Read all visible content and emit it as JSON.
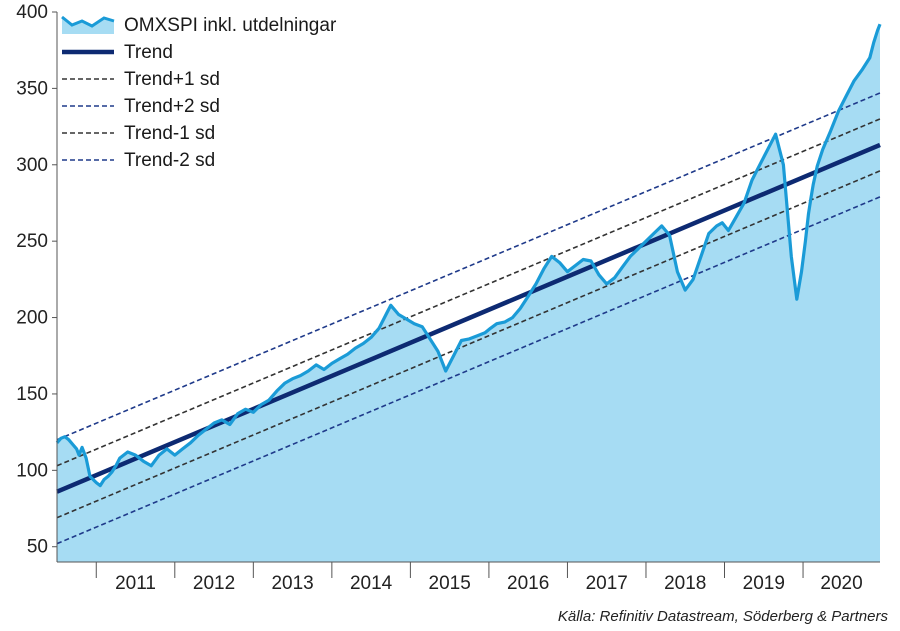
{
  "chart_data": {
    "type": "area",
    "title": "",
    "xlabel": "",
    "ylabel": "",
    "ylim": [
      40,
      400
    ],
    "yticks": [
      50,
      100,
      150,
      200,
      250,
      300,
      350,
      400
    ],
    "xlim": [
      2010.5,
      2020.98
    ],
    "year_labels": [
      "2011",
      "2012",
      "2013",
      "2014",
      "2015",
      "2016",
      "2017",
      "2018",
      "2019",
      "2020"
    ],
    "grid": false,
    "legend_position": "top-left",
    "series": [
      {
        "name": "OMXSPI inkl. utdelningar",
        "kind": "area",
        "color": "#1a9bd7",
        "fill": "#a6dcf3",
        "x": [
          2010.5,
          2010.55,
          2010.6,
          2010.65,
          2010.7,
          2010.75,
          2010.78,
          2010.82,
          2010.87,
          2010.92,
          2011.0,
          2011.05,
          2011.1,
          2011.15,
          2011.2,
          2011.25,
          2011.3,
          2011.4,
          2011.5,
          2011.6,
          2011.7,
          2011.8,
          2011.9,
          2012.0,
          2012.1,
          2012.2,
          2012.3,
          2012.4,
          2012.5,
          2012.6,
          2012.7,
          2012.8,
          2012.9,
          2013.0,
          2013.1,
          2013.2,
          2013.3,
          2013.4,
          2013.5,
          2013.6,
          2013.7,
          2013.8,
          2013.9,
          2014.0,
          2014.1,
          2014.2,
          2014.3,
          2014.4,
          2014.5,
          2014.6,
          2014.7,
          2014.75,
          2014.85,
          2014.95,
          2015.05,
          2015.15,
          2015.25,
          2015.35,
          2015.45,
          2015.55,
          2015.65,
          2015.75,
          2015.85,
          2015.95,
          2016.02,
          2016.1,
          2016.2,
          2016.3,
          2016.4,
          2016.5,
          2016.6,
          2016.7,
          2016.8,
          2016.9,
          2017.0,
          2017.1,
          2017.2,
          2017.3,
          2017.4,
          2017.5,
          2017.6,
          2017.7,
          2017.8,
          2017.9,
          2018.0,
          2018.1,
          2018.2,
          2018.3,
          2018.4,
          2018.5,
          2018.6,
          2018.7,
          2018.8,
          2018.9,
          2018.97,
          2019.05,
          2019.15,
          2019.25,
          2019.35,
          2019.45,
          2019.55,
          2019.65,
          2019.75,
          2019.85,
          2019.92,
          2019.98,
          2020.03,
          2020.07,
          2020.1,
          2020.13,
          2020.18,
          2020.25,
          2020.35,
          2020.45,
          2020.55,
          2020.65,
          2020.75,
          2020.85,
          2020.9,
          2020.95,
          2020.98
        ],
        "y": [
          118,
          121,
          122,
          120,
          117,
          114,
          110,
          115,
          108,
          96,
          92,
          90,
          94,
          96,
          99,
          103,
          108,
          112,
          110,
          106,
          103,
          110,
          114,
          110,
          114,
          118,
          123,
          127,
          131,
          133,
          130,
          137,
          140,
          138,
          143,
          146,
          152,
          157,
          160,
          162,
          165,
          169,
          166,
          170,
          173,
          176,
          180,
          183,
          187,
          193,
          203,
          208,
          202,
          199,
          196,
          194,
          186,
          178,
          165,
          175,
          185,
          186,
          188,
          190,
          193,
          196,
          197,
          200,
          206,
          214,
          222,
          232,
          240,
          236,
          230,
          234,
          238,
          237,
          228,
          222,
          226,
          233,
          240,
          245,
          250,
          255,
          260,
          254,
          230,
          218,
          225,
          240,
          255,
          260,
          262,
          257,
          266,
          275,
          290,
          300,
          310,
          320,
          300,
          240,
          212,
          230,
          250,
          268,
          278,
          287,
          299,
          310,
          322,
          335,
          345,
          355,
          362,
          370,
          380,
          388,
          392
        ],
        "line_width": 3.2
      },
      {
        "name": "Trend",
        "kind": "line",
        "color": "#0d2a72",
        "line_width": 4.5,
        "dash": "",
        "start": [
          2010.5,
          86
        ],
        "end": [
          2020.98,
          313
        ]
      },
      {
        "name": "Trend+1 sd",
        "kind": "line",
        "color": "#333333",
        "line_width": 1.6,
        "dash": "5,3",
        "start": [
          2010.5,
          103
        ],
        "end": [
          2020.98,
          330
        ]
      },
      {
        "name": "Trend+2 sd",
        "kind": "line",
        "color": "#1f3a8a",
        "line_width": 1.6,
        "dash": "5,3",
        "start": [
          2010.5,
          120
        ],
        "end": [
          2020.98,
          347
        ]
      },
      {
        "name": "Trend-1 sd",
        "kind": "line",
        "color": "#333333",
        "line_width": 1.6,
        "dash": "5,3",
        "start": [
          2010.5,
          69
        ],
        "end": [
          2020.98,
          296
        ]
      },
      {
        "name": "Trend-2 sd",
        "kind": "line",
        "color": "#1f3a8a",
        "line_width": 1.6,
        "dash": "5,3",
        "start": [
          2010.5,
          52
        ],
        "end": [
          2020.98,
          279
        ]
      }
    ],
    "source": "Källa: Refinitiv Datastream, Söderberg & Partners"
  }
}
